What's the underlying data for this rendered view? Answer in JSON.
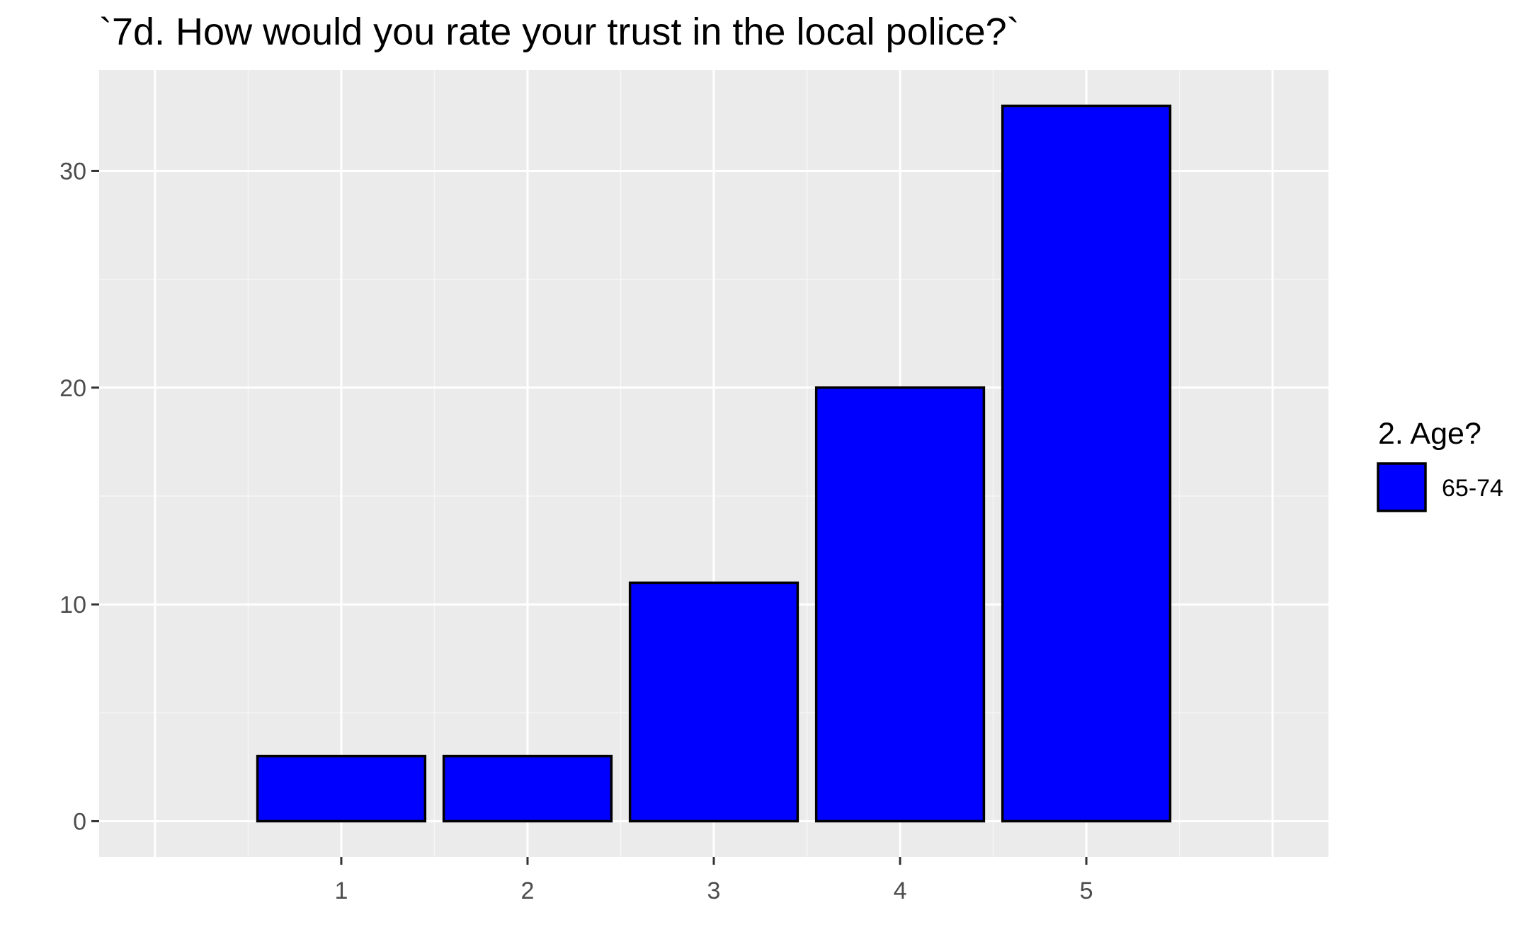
{
  "chart_data": {
    "type": "bar",
    "title": "`7d. How would you rate your trust in the local police?`",
    "xlabel": "",
    "ylabel": "",
    "categories": [
      "1",
      "2",
      "3",
      "4",
      "5"
    ],
    "series": [
      {
        "name": "65-74",
        "values": [
          3,
          3,
          11,
          20,
          33
        ]
      }
    ],
    "ylim": [
      -1.65,
      34.65
    ],
    "xlim": [
      -0.3,
      6.3
    ],
    "y_ticks": [
      0,
      10,
      20,
      30
    ],
    "y_tick_labels": [
      "0",
      "10",
      "20",
      "30"
    ],
    "y_minor_ticks": [
      5,
      15,
      25
    ],
    "x_grid": [
      0,
      1,
      2,
      3,
      4,
      5,
      6
    ],
    "x_minor_grid": [
      0.5,
      1.5,
      2.5,
      3.5,
      4.5,
      5.5
    ],
    "grid": true,
    "legend": {
      "title": "2. Age?",
      "placement": "right",
      "entries": [
        {
          "label": "65-74",
          "color": "#0000ff"
        }
      ]
    }
  },
  "colors": {
    "bar_fill": "#0000ff",
    "bar_outline": "#000000",
    "panel_background": "#ebebeb",
    "grid_major": "#ffffff",
    "grid_minor": "#f6f6f6",
    "tick_text": "#4d4d4d"
  }
}
